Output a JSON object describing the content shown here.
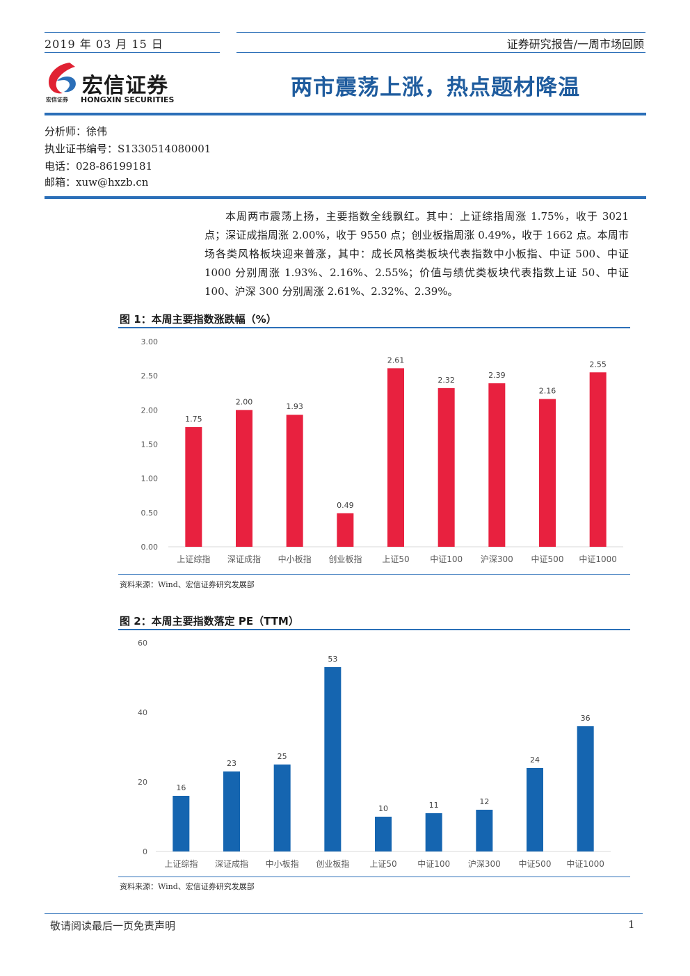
{
  "header": {
    "date": "2019 年 03 月 15 日",
    "report_type": "证券研究报告/一周市场回顾",
    "logo_cn": "宏信证券",
    "logo_small": "宏信证券",
    "logo_en": "HONGXIN SECURITIES",
    "title": "两市震荡上涨，热点题材降温",
    "colors": {
      "brand_blue": "#2b6fb8",
      "title_blue": "#1f5c9e",
      "logo_red": "#e02233"
    }
  },
  "analyst": {
    "name": "分析师：徐伟",
    "cert": "执业证书编号：S1330514080001",
    "phone": "电话：028-86199181",
    "email": "邮箱：xuw@hxzb.cn"
  },
  "summary": "本周两市震荡上扬，主要指数全线飘红。其中：上证综指周涨 1.75%，收于 3021 点；深证成指周涨 2.00%，收于 9550 点；创业板指周涨 0.49%，收于 1662 点。本周市场各类风格板块迎来普涨，其中：成长风格类板块代表指数中小板指、中证 500、中证 1000 分别周涨 1.93%、2.16%、2.55%；价值与绩优类板块代表指数上证 50、中证 100、沪深 300 分别周涨 2.61%、2.32%、2.39%。",
  "figures": {
    "fig1": {
      "title": "图 1：本周主要指数涨跌幅（%）",
      "source": "资料来源：Wind、宏信证券研究发展部"
    },
    "fig2": {
      "title": "图 2：本周主要指数落定 PE（TTM）",
      "source": "资料来源：Wind、宏信证券研究发展部"
    }
  },
  "chart_data": [
    {
      "type": "bar",
      "title": "图 1：本周主要指数涨跌幅（%）",
      "categories": [
        "上证综指",
        "深证成指",
        "中小板指",
        "创业板指",
        "上证50",
        "中证100",
        "沪深300",
        "中证500",
        "中证1000"
      ],
      "values": [
        1.75,
        2.0,
        1.93,
        0.49,
        2.61,
        2.32,
        2.39,
        2.16,
        2.55
      ],
      "value_labels": [
        "1.75",
        "2.00",
        "1.93",
        "0.49",
        "2.61",
        "2.32",
        "2.39",
        "2.16",
        "2.55"
      ],
      "ylim": [
        0,
        3
      ],
      "yticks": [
        "0.00",
        "0.50",
        "1.00",
        "1.50",
        "2.00",
        "2.50",
        "3.00"
      ],
      "grid": false,
      "color": "#e8213f"
    },
    {
      "type": "bar",
      "title": "图 2：本周主要指数落定 PE（TTM）",
      "categories": [
        "上证综指",
        "深证成指",
        "中小板指",
        "创业板指",
        "上证50",
        "中证100",
        "沪深300",
        "中证500",
        "中证1000"
      ],
      "values": [
        16,
        23,
        25,
        53,
        10,
        11,
        12,
        24,
        36
      ],
      "value_labels": [
        "16",
        "23",
        "25",
        "53",
        "10",
        "11",
        "12",
        "24",
        "36"
      ],
      "ylim": [
        0,
        60
      ],
      "yticks": [
        "0",
        "20",
        "40",
        "60"
      ],
      "grid": false,
      "color": "#1565b0"
    }
  ],
  "footer": {
    "disclaimer": "敬请阅读最后一页免责声明",
    "page_number": "1"
  }
}
